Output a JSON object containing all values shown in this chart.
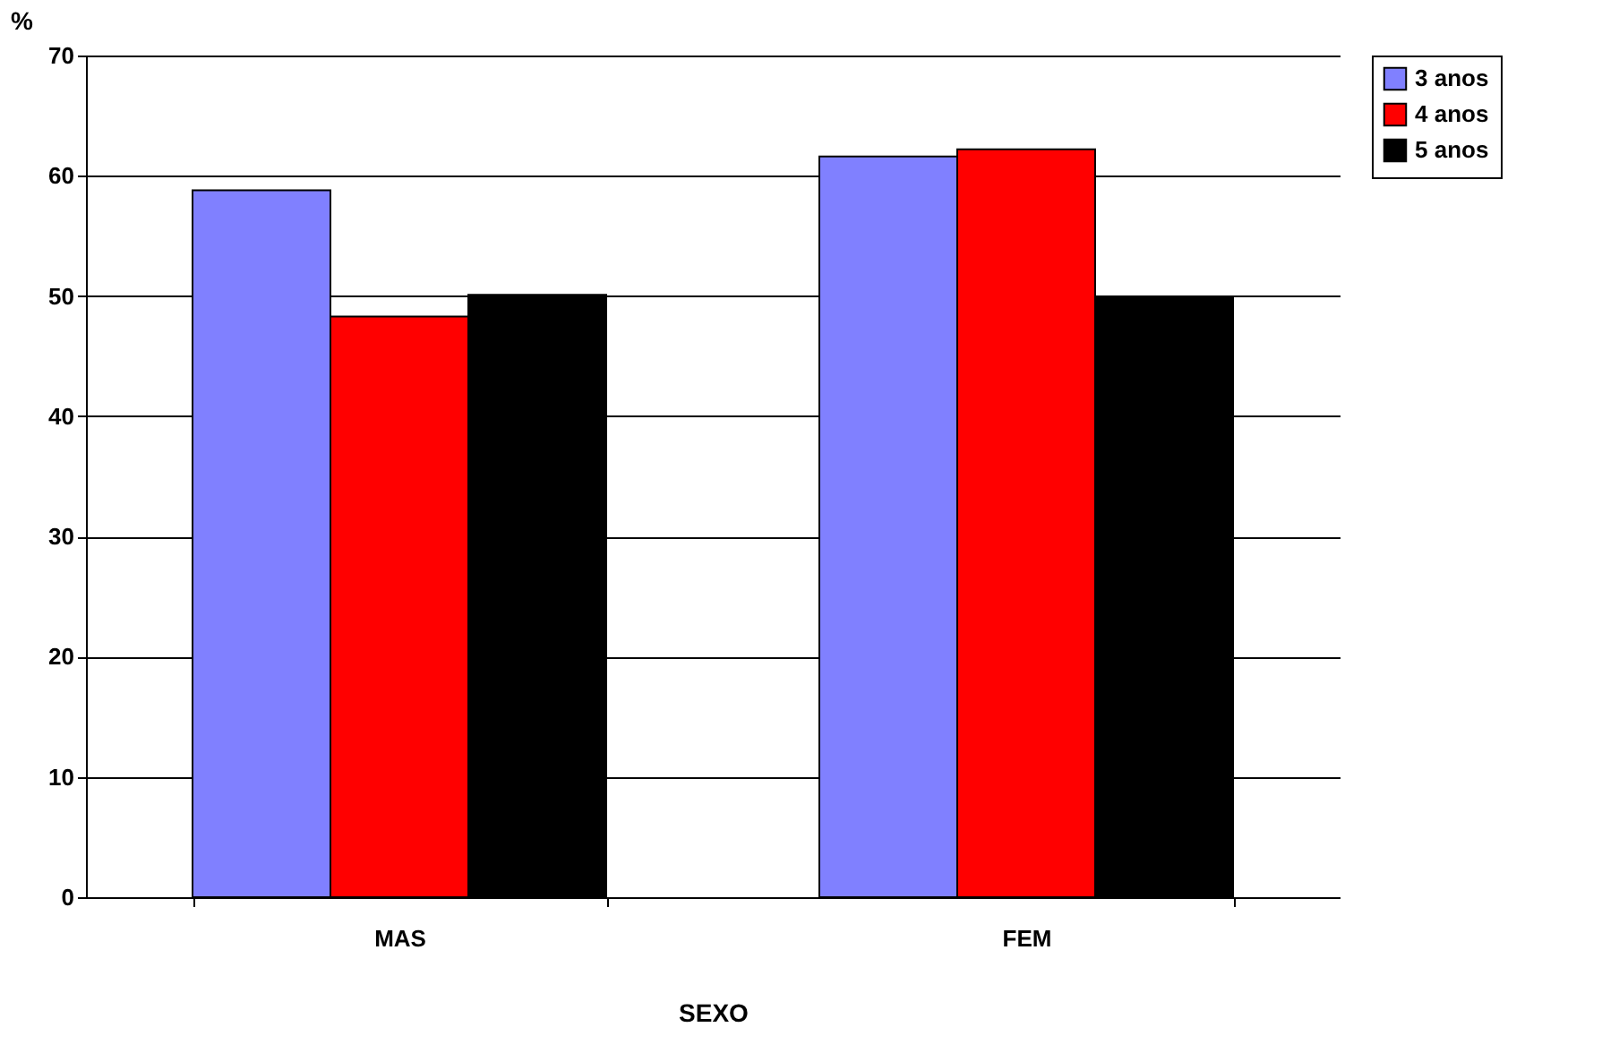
{
  "chart_data": {
    "type": "bar",
    "xlabel": "SEXO",
    "ylabel": "%",
    "categories": [
      "MAS",
      "FEM"
    ],
    "series": [
      {
        "name": "3 anos",
        "color": "#8080ff",
        "values": [
          58.8,
          61.6
        ]
      },
      {
        "name": "4 anos",
        "color": "#ff0000",
        "values": [
          48.3,
          62.2
        ]
      },
      {
        "name": "5 anos",
        "color": "#000000",
        "values": [
          50.1,
          49.9
        ]
      }
    ],
    "ylim": [
      0,
      70
    ],
    "yticks": [
      0,
      10,
      20,
      30,
      40,
      50,
      60,
      70
    ],
    "grid": "y",
    "legend": "right"
  }
}
